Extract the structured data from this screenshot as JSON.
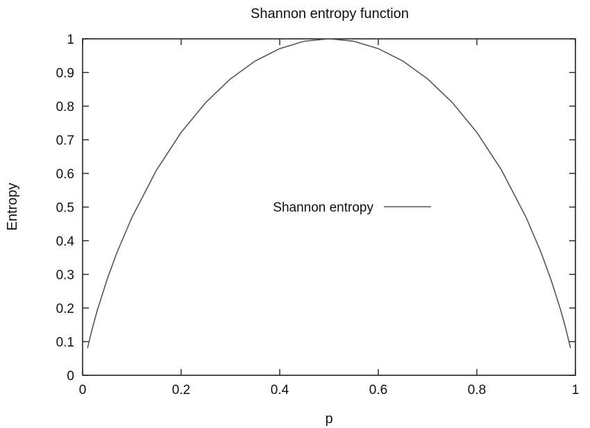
{
  "chart_data": {
    "type": "line",
    "title": "Shannon entropy function",
    "xlabel": "p",
    "ylabel": "Entropy",
    "xlim": [
      0,
      1
    ],
    "ylim": [
      0,
      1
    ],
    "xticks": [
      "0",
      "0.2",
      "0.4",
      "0.6",
      "0.8",
      "1"
    ],
    "yticks": [
      "0",
      "0.1",
      "0.2",
      "0.3",
      "0.4",
      "0.5",
      "0.6",
      "0.7",
      "0.8",
      "0.9",
      "1"
    ],
    "grid": false,
    "legend_position": "center",
    "series": [
      {
        "name": "Shannon entropy",
        "color": "#555555",
        "x": [
          0.01,
          0.02,
          0.03,
          0.05,
          0.07,
          0.1,
          0.15,
          0.2,
          0.25,
          0.3,
          0.35,
          0.4,
          0.45,
          0.5,
          0.55,
          0.6,
          0.65,
          0.7,
          0.75,
          0.8,
          0.85,
          0.9,
          0.93,
          0.95,
          0.97,
          0.98,
          0.99
        ],
        "y": [
          0.081,
          0.141,
          0.194,
          0.286,
          0.366,
          0.469,
          0.61,
          0.722,
          0.811,
          0.881,
          0.934,
          0.971,
          0.993,
          1.0,
          0.993,
          0.971,
          0.934,
          0.881,
          0.811,
          0.722,
          0.61,
          0.469,
          0.366,
          0.286,
          0.194,
          0.141,
          0.081
        ]
      }
    ]
  }
}
